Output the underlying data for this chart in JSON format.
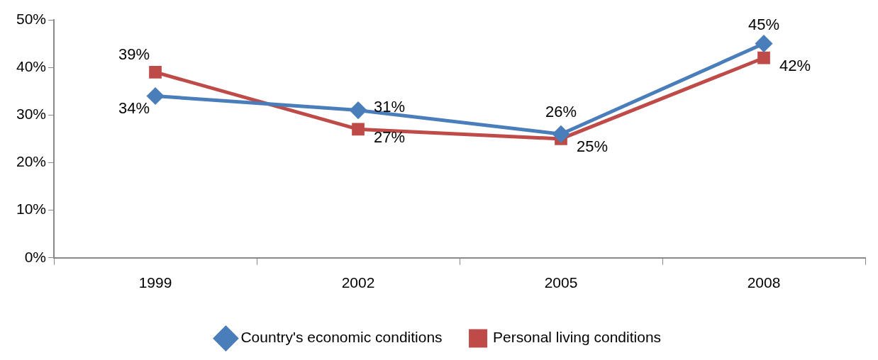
{
  "chart_data": {
    "type": "line",
    "categories": [
      "1999",
      "2002",
      "2005",
      "2008"
    ],
    "ylim": [
      0,
      50
    ],
    "yticks": [
      {
        "value": 0,
        "label": "0%"
      },
      {
        "value": 10,
        "label": "10%"
      },
      {
        "value": 20,
        "label": "20%"
      },
      {
        "value": 30,
        "label": "30%"
      },
      {
        "value": 40,
        "label": "40%"
      },
      {
        "value": 50,
        "label": "50%"
      }
    ],
    "grid": false,
    "legend": "bottom",
    "line_style": "solid",
    "series": [
      {
        "name": "Country's economic conditions",
        "color": "#4a7ebb",
        "marker": "diamond",
        "values": [
          34,
          31,
          26,
          45
        ],
        "value_labels": [
          "34%",
          "31%",
          "26%",
          "45%"
        ]
      },
      {
        "name": "Personal living conditions",
        "color": "#be4b48",
        "marker": "square",
        "values": [
          39,
          27,
          25,
          42
        ],
        "value_labels": [
          "39%",
          "27%",
          "25%",
          "42%"
        ]
      }
    ]
  }
}
